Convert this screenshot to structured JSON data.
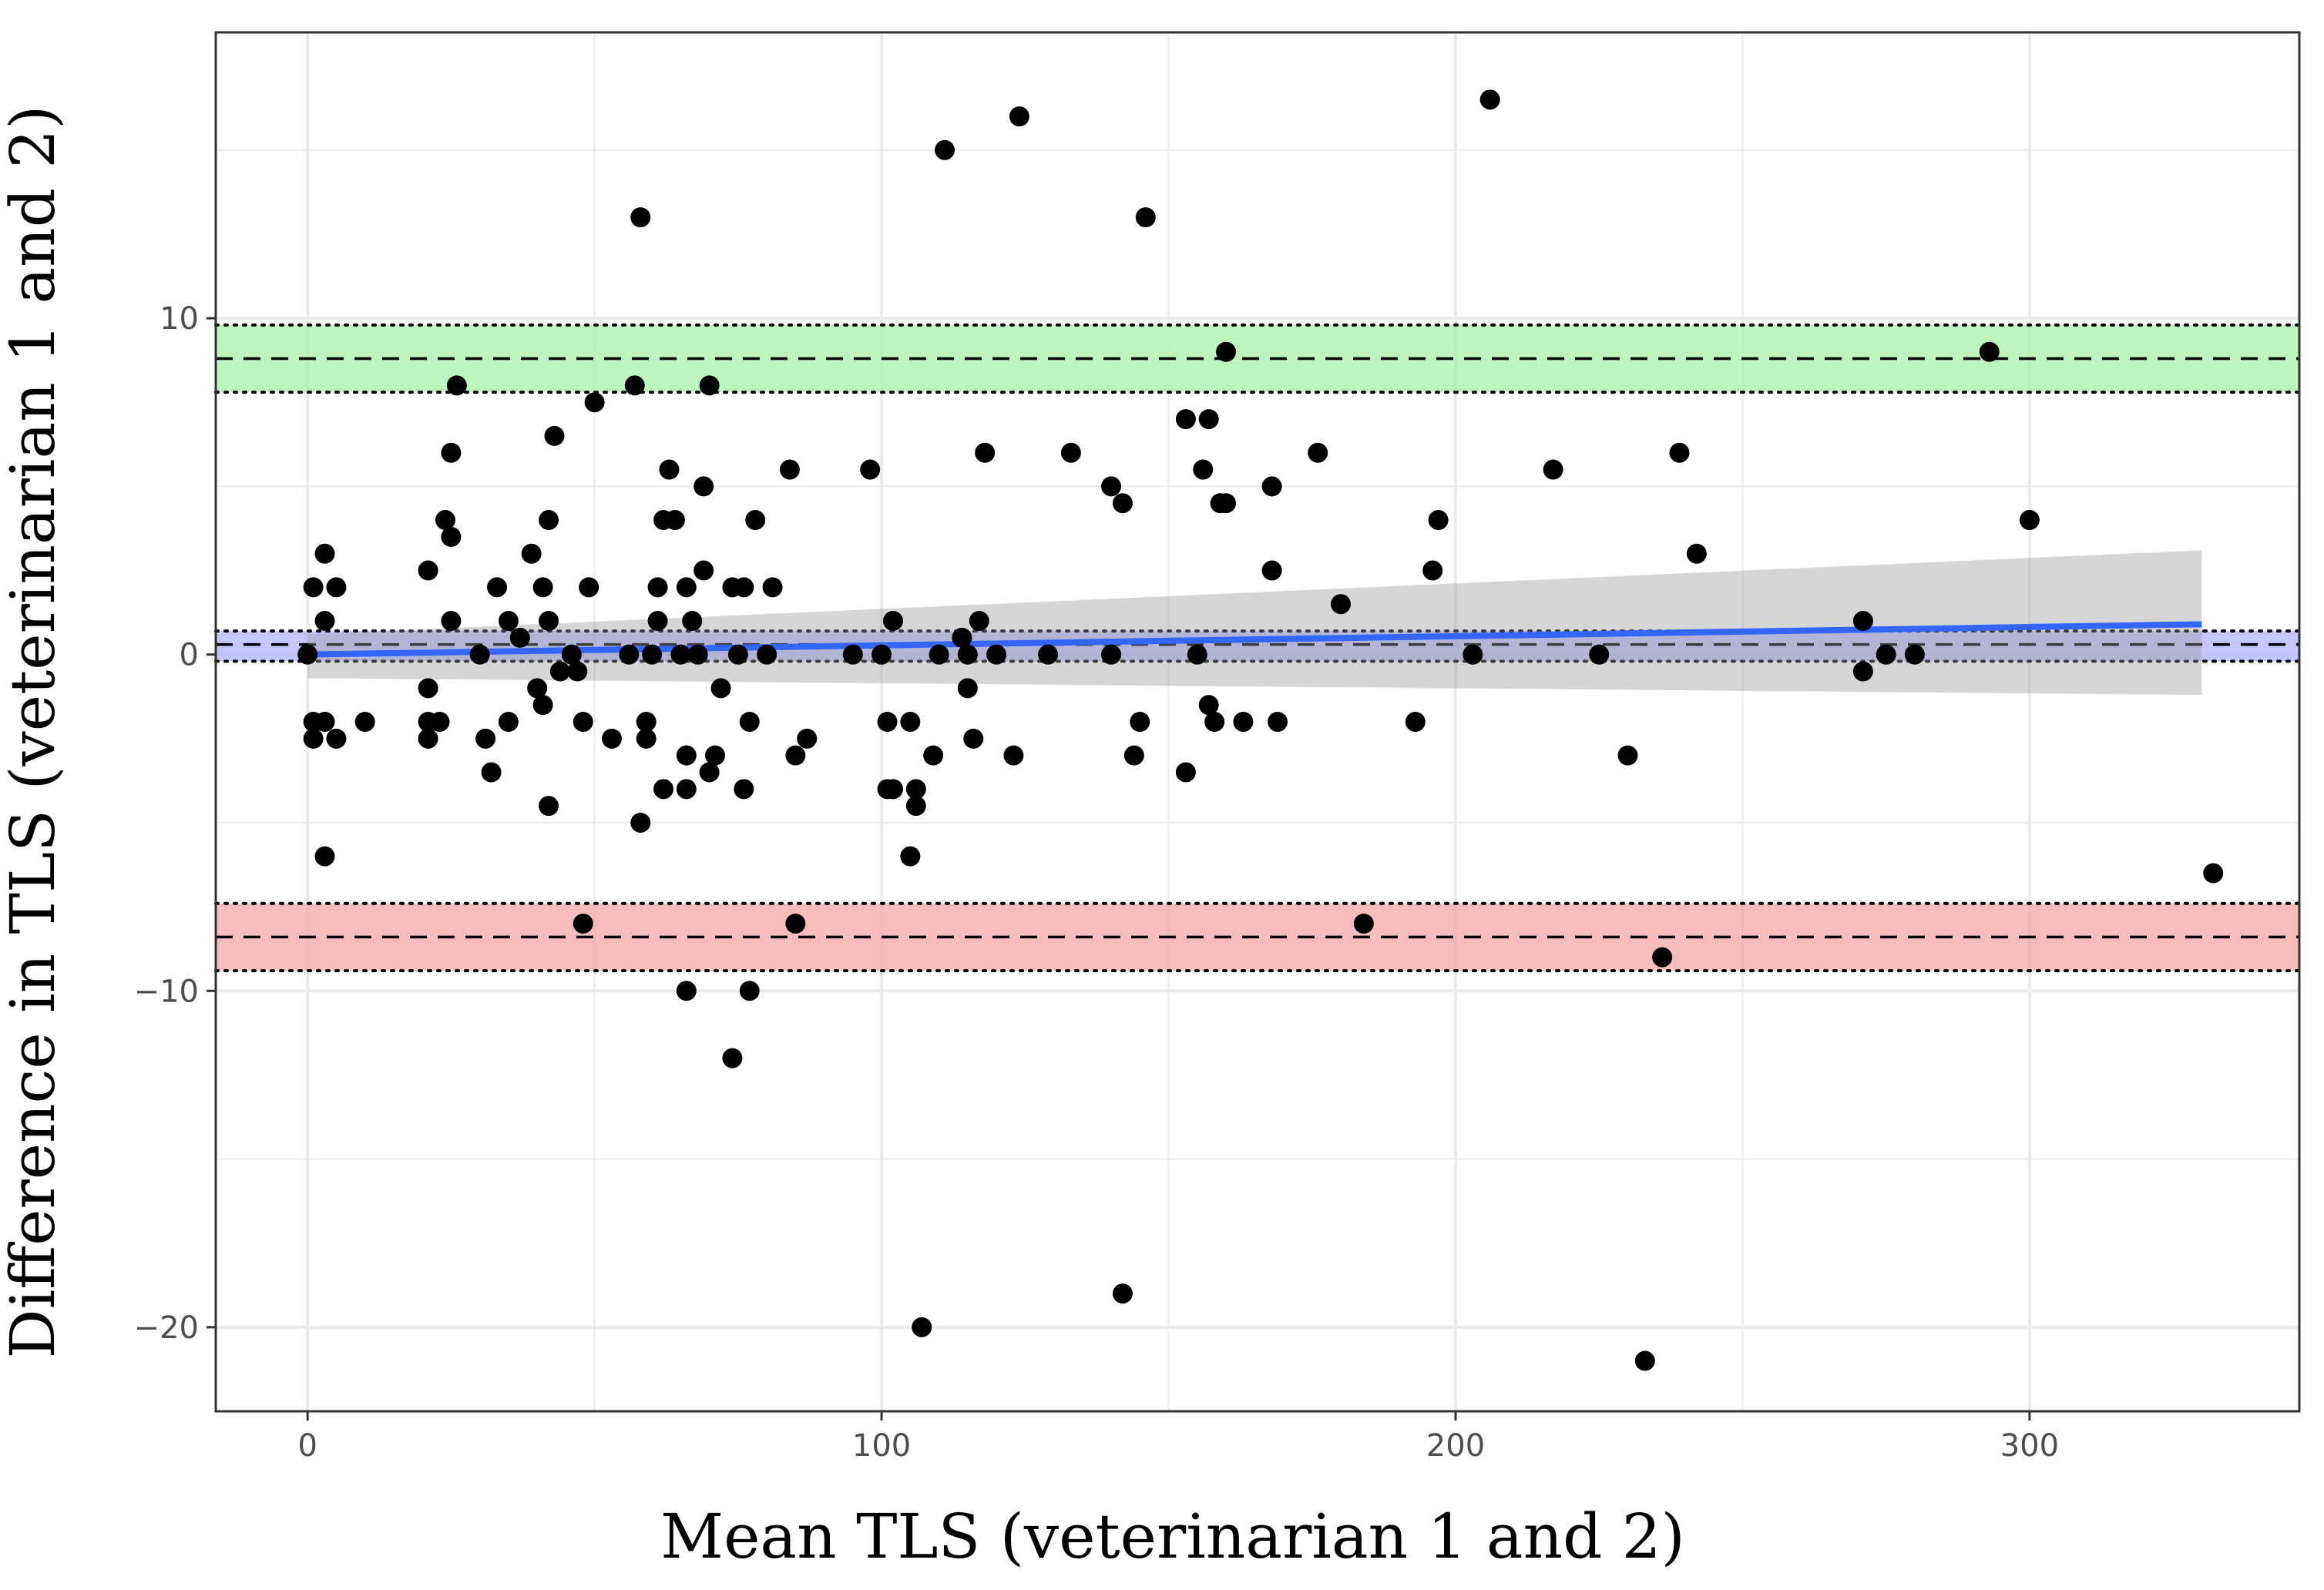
{
  "chart_data": {
    "type": "scatter",
    "title": "",
    "xlabel": "Mean TLS (veterinarian 1 and 2)",
    "ylabel": "Difference in TLS (veterinarian 1 and 2)",
    "xlim": [
      -16,
      347
    ],
    "ylim": [
      -22.5,
      18.5
    ],
    "x_ticks": [
      0,
      100,
      200,
      300
    ],
    "x_tick_labels": [
      "0",
      "100",
      "200",
      "300"
    ],
    "y_ticks": [
      -20,
      -10,
      0,
      10
    ],
    "y_tick_labels": [
      "−20",
      "−10",
      "0",
      "10"
    ],
    "grid": true,
    "legend": "none",
    "colors": {
      "points": "#000000",
      "regression_line": "#3366ff",
      "regression_ci": "#999999",
      "mean_band": "#b3b3ff",
      "upper_loa_band": "#a8f0a8",
      "lower_loa_band": "#f5a5a5",
      "panel_border": "#333333",
      "grid": "#ebebeb"
    },
    "bias": {
      "value": 0.3,
      "ci": [
        -0.2,
        0.7
      ]
    },
    "upper_limit": {
      "value": 8.8,
      "ci": [
        7.8,
        9.8
      ]
    },
    "lower_limit": {
      "value": -8.4,
      "ci": [
        -9.4,
        -7.4
      ]
    },
    "regression": {
      "x_range": [
        0,
        330
      ],
      "y_start": 0.0,
      "y_end": 0.9,
      "ci_start": [
        -0.7,
        0.6
      ],
      "ci_end": [
        -1.2,
        3.1
      ]
    },
    "points": [
      [
        0,
        0
      ],
      [
        1,
        2
      ],
      [
        1,
        -2
      ],
      [
        1,
        -2.5
      ],
      [
        3,
        3
      ],
      [
        3,
        1
      ],
      [
        3,
        -2
      ],
      [
        3,
        -6
      ],
      [
        5,
        2
      ],
      [
        5,
        -2.5
      ],
      [
        10,
        -2
      ],
      [
        21,
        2.5
      ],
      [
        21,
        -1
      ],
      [
        21,
        -2
      ],
      [
        21,
        -2.5
      ],
      [
        23,
        -2
      ],
      [
        24,
        4
      ],
      [
        25,
        6
      ],
      [
        25,
        3.5
      ],
      [
        25,
        1
      ],
      [
        26,
        8
      ],
      [
        30,
        0
      ],
      [
        31,
        -2.5
      ],
      [
        32,
        -3.5
      ],
      [
        33,
        2
      ],
      [
        35,
        -2
      ],
      [
        35,
        1
      ],
      [
        37,
        0.5
      ],
      [
        39,
        3
      ],
      [
        40,
        -1
      ],
      [
        41,
        -1.5
      ],
      [
        41,
        2
      ],
      [
        42,
        1
      ],
      [
        42,
        4
      ],
      [
        42,
        -4.5
      ],
      [
        43,
        6.5
      ],
      [
        44,
        -0.5
      ],
      [
        46,
        0
      ],
      [
        47,
        -0.5
      ],
      [
        48,
        -8
      ],
      [
        48,
        -2
      ],
      [
        49,
        2
      ],
      [
        50,
        7.5
      ],
      [
        53,
        -2.5
      ],
      [
        56,
        0
      ],
      [
        57,
        8
      ],
      [
        58,
        13
      ],
      [
        58,
        -5
      ],
      [
        59,
        -2
      ],
      [
        59,
        -2.5
      ],
      [
        60,
        0
      ],
      [
        61,
        1
      ],
      [
        61,
        2
      ],
      [
        62,
        4
      ],
      [
        62,
        -4
      ],
      [
        63,
        5.5
      ],
      [
        64,
        4
      ],
      [
        65,
        0
      ],
      [
        66,
        2
      ],
      [
        66,
        -3
      ],
      [
        66,
        -4
      ],
      [
        66,
        -10
      ],
      [
        67,
        1
      ],
      [
        68,
        0
      ],
      [
        69,
        2.5
      ],
      [
        69,
        5
      ],
      [
        70,
        8
      ],
      [
        70,
        -3.5
      ],
      [
        71,
        -3
      ],
      [
        72,
        -1
      ],
      [
        74,
        2
      ],
      [
        74,
        -12
      ],
      [
        75,
        0
      ],
      [
        76,
        2
      ],
      [
        76,
        -4
      ],
      [
        77,
        -2
      ],
      [
        77,
        -10
      ],
      [
        78,
        4
      ],
      [
        80,
        0
      ],
      [
        81,
        2
      ],
      [
        84,
        5.5
      ],
      [
        85,
        -8
      ],
      [
        85,
        -3
      ],
      [
        87,
        -2.5
      ],
      [
        95,
        0
      ],
      [
        98,
        5.5
      ],
      [
        100,
        0
      ],
      [
        101,
        -2
      ],
      [
        101,
        -4
      ],
      [
        102,
        1
      ],
      [
        102,
        -4
      ],
      [
        105,
        -2
      ],
      [
        105,
        -6
      ],
      [
        106,
        -4
      ],
      [
        106,
        -4.5
      ],
      [
        107,
        -20
      ],
      [
        109,
        -3
      ],
      [
        110,
        0
      ],
      [
        111,
        15
      ],
      [
        114,
        0.5
      ],
      [
        115,
        -1
      ],
      [
        115,
        0
      ],
      [
        116,
        -2.5
      ],
      [
        117,
        1
      ],
      [
        118,
        6
      ],
      [
        120,
        0
      ],
      [
        123,
        -3
      ],
      [
        124,
        16
      ],
      [
        129,
        0
      ],
      [
        133,
        6
      ],
      [
        140,
        5
      ],
      [
        140,
        0
      ],
      [
        142,
        4.5
      ],
      [
        142,
        -19
      ],
      [
        144,
        -3
      ],
      [
        145,
        -2
      ],
      [
        146,
        13
      ],
      [
        153,
        7
      ],
      [
        153,
        -3.5
      ],
      [
        155,
        0
      ],
      [
        156,
        5.5
      ],
      [
        157,
        -1.5
      ],
      [
        157,
        7
      ],
      [
        158,
        -2
      ],
      [
        159,
        4.5
      ],
      [
        160,
        4.5
      ],
      [
        160,
        9
      ],
      [
        163,
        -2
      ],
      [
        168,
        5
      ],
      [
        168,
        2.5
      ],
      [
        169,
        -2
      ],
      [
        176,
        6
      ],
      [
        180,
        1.5
      ],
      [
        184,
        -8
      ],
      [
        193,
        -2
      ],
      [
        196,
        2.5
      ],
      [
        197,
        4
      ],
      [
        203,
        0
      ],
      [
        206,
        16.5
      ],
      [
        217,
        5.5
      ],
      [
        225,
        0
      ],
      [
        230,
        -3
      ],
      [
        233,
        -21
      ],
      [
        236,
        -9
      ],
      [
        239,
        6
      ],
      [
        242,
        3
      ],
      [
        271,
        1
      ],
      [
        271,
        -0.5
      ],
      [
        275,
        0
      ],
      [
        280,
        0
      ],
      [
        293,
        9
      ],
      [
        300,
        4
      ],
      [
        332,
        -6.5
      ]
    ]
  }
}
